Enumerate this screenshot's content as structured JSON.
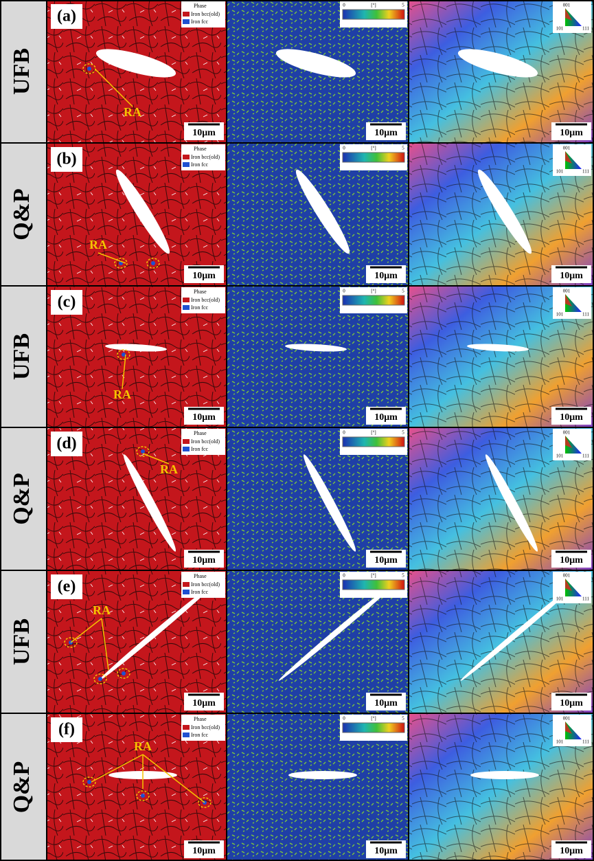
{
  "rows": [
    {
      "label": "UFB",
      "panel": "(a)",
      "phase_title": "Phase",
      "phase_items": [
        "Iron bcc(old)",
        "Iron fcc"
      ],
      "ra": "RA",
      "scale": [
        "10μm",
        "10μm",
        "10μm"
      ],
      "kam_scale": [
        "0",
        "[°]",
        "5"
      ],
      "ipf": [
        "001",
        "101",
        "111"
      ]
    },
    {
      "label": "Q&P",
      "panel": "(b)",
      "phase_title": "Phase",
      "phase_items": [
        "Iron bcc(old)",
        "Iron fcc"
      ],
      "ra": "RA",
      "scale": [
        "10μm",
        "10μm",
        "10μm"
      ],
      "kam_scale": [
        "0",
        "[°]",
        "5"
      ],
      "ipf": [
        "001",
        "101",
        "111"
      ]
    },
    {
      "label": "UFB",
      "panel": "(c)",
      "phase_title": "Phase",
      "phase_items": [
        "Iron bcc(old)",
        "Iron fcc"
      ],
      "ra": "RA",
      "scale": [
        "10μm",
        "10μm",
        "10μm"
      ],
      "kam_scale": [
        "0",
        "[°]",
        "5"
      ],
      "ipf": [
        "001",
        "101",
        "111"
      ]
    },
    {
      "label": "Q&P",
      "panel": "(d)",
      "phase_title": "Phase",
      "phase_items": [
        "Iron bcc(old)",
        "Iron fcc"
      ],
      "ra": "RA",
      "scale": [
        "10μm",
        "10μm",
        "10μm"
      ],
      "kam_scale": [
        "0",
        "[°]",
        "5"
      ],
      "ipf": [
        "001",
        "101",
        "111"
      ]
    },
    {
      "label": "UFB",
      "panel": "(e)",
      "phase_title": "Phase",
      "phase_items": [
        "Iron bcc(old)",
        "Iron fcc"
      ],
      "ra": "RA",
      "scale": [
        "10μm",
        "10μm",
        "10μm"
      ],
      "kam_scale": [
        "0",
        "[°]",
        "5"
      ],
      "ipf": [
        "001",
        "101",
        "111"
      ]
    },
    {
      "label": "Q&P",
      "panel": "(f)",
      "phase_title": "Phase",
      "phase_items": [
        "Iron bcc(old)",
        "Iron fcc"
      ],
      "ra": "RA",
      "scale": [
        "10μm",
        "10μm",
        "10μm"
      ],
      "kam_scale": [
        "0",
        "[°]",
        "5"
      ],
      "ipf": [
        "001",
        "101",
        "111"
      ]
    }
  ]
}
